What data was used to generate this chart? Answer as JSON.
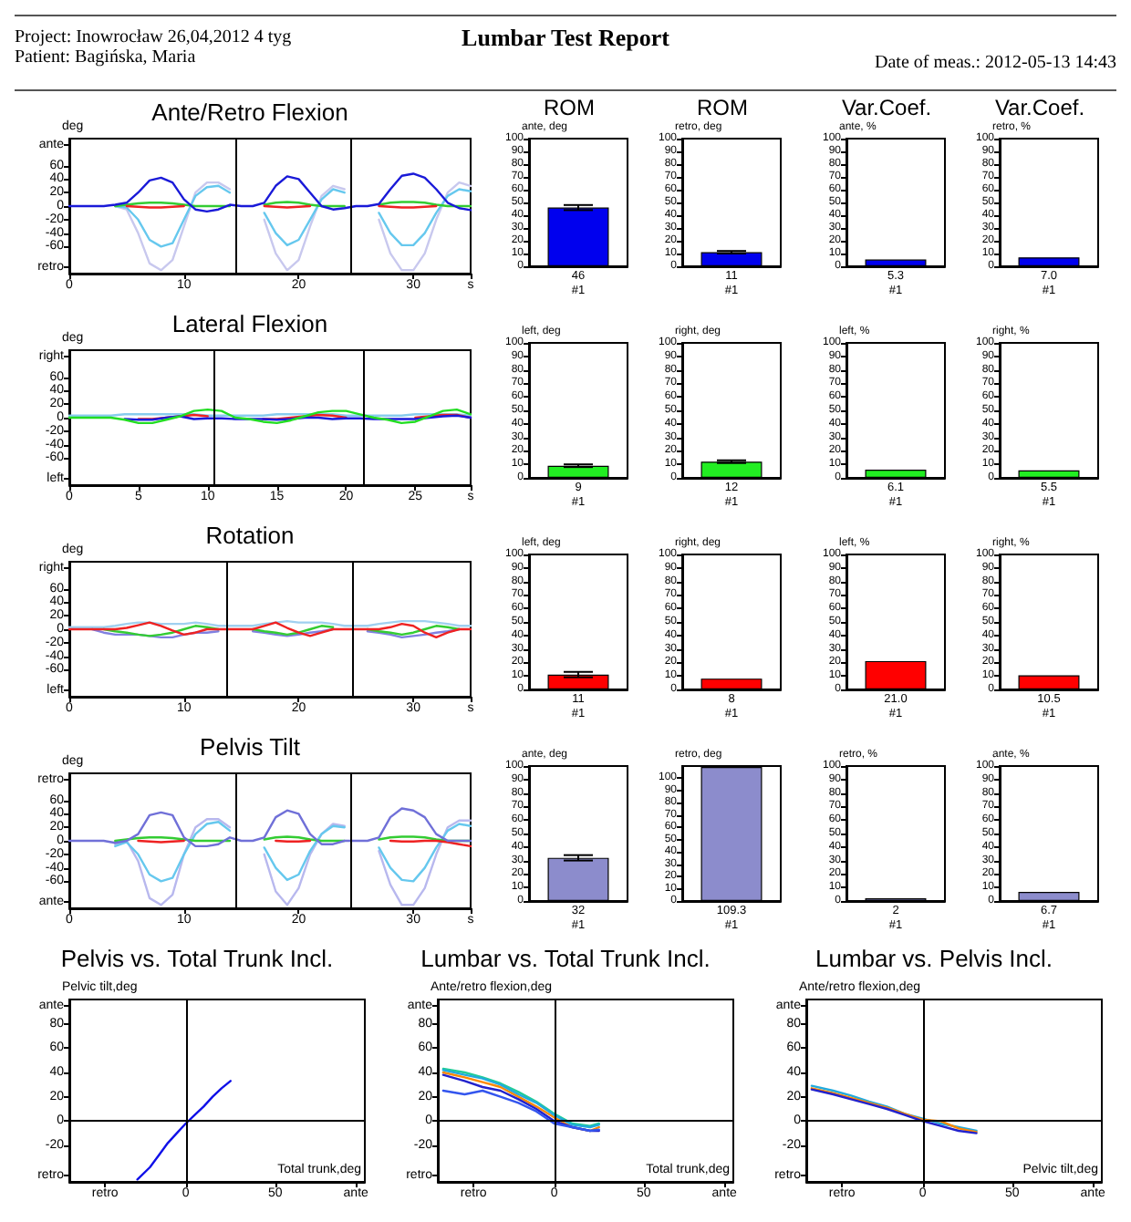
{
  "chart_data": [
    {
      "type": "other",
      "title": "Lumbar Test Report",
      "annotations": [
        "Project: Inowrocław 26,04,2012 4 tyg",
        "Patient: Bagińska, Maria",
        "Date of meas.: 2012-05-13 14:43"
      ]
    },
    {
      "type": "line",
      "title": "Ante/Retro Flexion",
      "ylabel": "deg",
      "xlim": [
        0,
        35
      ],
      "xticks": [
        0,
        10,
        20,
        30,
        {
          "value": 35,
          "label": "s"
        }
      ],
      "ylim": [
        -100,
        100
      ],
      "yticks": [
        {
          "value": 90,
          "label": "ante"
        },
        60,
        40,
        20,
        0,
        -20,
        -40,
        -60,
        {
          "value": -90,
          "label": "retro"
        }
      ],
      "ref_lines": [
        {
          "axis": "x",
          "value": 14.5,
          "color": "#000000"
        },
        {
          "axis": "x",
          "value": 24.5,
          "color": "#000000"
        }
      ],
      "x": [
        0,
        1,
        2,
        3,
        4,
        5,
        6,
        7,
        8,
        9,
        10,
        11,
        12,
        13,
        14,
        15,
        16,
        17,
        18,
        19,
        20,
        21,
        22,
        23,
        24,
        25,
        26,
        27,
        28,
        29,
        30,
        31,
        32,
        33,
        34,
        35
      ],
      "series": [
        {
          "color": "#c8c8ee",
          "values": [
            null,
            null,
            null,
            null,
            0,
            -5,
            -40,
            -85,
            -95,
            -80,
            -30,
            20,
            35,
            35,
            25,
            null,
            null,
            -20,
            -70,
            -95,
            -80,
            -30,
            15,
            30,
            25,
            null,
            null,
            -20,
            -70,
            -95,
            -95,
            -70,
            -20,
            20,
            35,
            30
          ]
        },
        {
          "color": "#66c8ee",
          "values": [
            null,
            null,
            null,
            null,
            0,
            -2,
            -20,
            -50,
            -60,
            -55,
            -20,
            15,
            28,
            30,
            20,
            null,
            null,
            -10,
            -40,
            -58,
            -50,
            -20,
            10,
            25,
            20,
            null,
            null,
            -10,
            -40,
            -58,
            -58,
            -40,
            -10,
            15,
            25,
            22
          ]
        },
        {
          "color": "#33cc33",
          "values": [
            null,
            null,
            null,
            null,
            0,
            2,
            4,
            5,
            5,
            4,
            2,
            0,
            0,
            0,
            0,
            null,
            null,
            2,
            5,
            6,
            5,
            2,
            0,
            0,
            0,
            null,
            null,
            2,
            5,
            6,
            6,
            5,
            2,
            0,
            0,
            0
          ]
        },
        {
          "color": "#ee2222",
          "values": [
            null,
            null,
            null,
            null,
            null,
            0,
            -1,
            -2,
            -2,
            -1,
            0,
            null,
            null,
            null,
            null,
            null,
            null,
            0,
            -1,
            -2,
            -1,
            0,
            null,
            null,
            null,
            null,
            null,
            0,
            -1,
            -2,
            -2,
            -1,
            0,
            null,
            null,
            null
          ]
        },
        {
          "color": "#1a1ad8",
          "values": [
            0,
            0,
            0,
            0,
            2,
            5,
            20,
            38,
            42,
            35,
            10,
            -5,
            -8,
            -5,
            2,
            0,
            0,
            5,
            30,
            44,
            40,
            20,
            0,
            -5,
            -3,
            0,
            0,
            3,
            25,
            45,
            48,
            42,
            25,
            5,
            -3,
            -6
          ]
        }
      ]
    },
    {
      "type": "bar",
      "title": "ROM",
      "ylabel": "ante, deg",
      "categories": [
        "#1"
      ],
      "values": [
        46
      ],
      "errors": [
        2
      ],
      "value_labels": [
        "46"
      ],
      "color": "#0000ee",
      "ylim": [
        0,
        100
      ],
      "yticks": [
        0,
        10,
        20,
        30,
        40,
        50,
        60,
        70,
        80,
        90,
        100
      ]
    },
    {
      "type": "bar",
      "title": "ROM",
      "ylabel": "retro, deg",
      "categories": [
        "#1"
      ],
      "values": [
        11
      ],
      "errors": [
        1
      ],
      "value_labels": [
        "11"
      ],
      "color": "#0000ee",
      "ylim": [
        0,
        100
      ],
      "yticks": [
        0,
        10,
        20,
        30,
        40,
        50,
        60,
        70,
        80,
        90,
        100
      ]
    },
    {
      "type": "bar",
      "title": "Var.Coef.",
      "ylabel": "ante, %",
      "categories": [
        "#1"
      ],
      "values": [
        5.3
      ],
      "value_labels": [
        "5.3"
      ],
      "color": "#0000ee",
      "ylim": [
        0,
        100
      ],
      "yticks": [
        0,
        10,
        20,
        30,
        40,
        50,
        60,
        70,
        80,
        90,
        100
      ]
    },
    {
      "type": "bar",
      "title": "Var.Coef.",
      "ylabel": "retro, %",
      "categories": [
        "#1"
      ],
      "values": [
        7.0
      ],
      "value_labels": [
        "7.0"
      ],
      "color": "#0000ee",
      "ylim": [
        0,
        100
      ],
      "yticks": [
        0,
        10,
        20,
        30,
        40,
        50,
        60,
        70,
        80,
        90,
        100
      ]
    },
    {
      "type": "line",
      "title": "Lateral Flexion",
      "ylabel": "deg",
      "xlim": [
        0,
        29
      ],
      "xticks": [
        0,
        5,
        10,
        15,
        20,
        25,
        {
          "value": 29,
          "label": "s"
        }
      ],
      "ylim": [
        -100,
        100
      ],
      "yticks": [
        {
          "value": 90,
          "label": "right"
        },
        60,
        40,
        20,
        0,
        -20,
        -40,
        -60,
        {
          "value": -90,
          "label": "left"
        }
      ],
      "ref_lines": [
        {
          "axis": "x",
          "value": 10.5,
          "color": "#000000"
        },
        {
          "axis": "x",
          "value": 21.2,
          "color": "#000000"
        }
      ],
      "x": [
        0,
        1,
        2,
        3,
        4,
        5,
        6,
        7,
        8,
        9,
        10,
        11,
        12,
        13,
        14,
        15,
        16,
        17,
        18,
        19,
        20,
        21,
        22,
        23,
        24,
        25,
        26,
        27,
        28,
        29
      ],
      "series": [
        {
          "color": "#88ccee",
          "values": [
            3,
            3,
            3,
            3,
            5,
            5,
            5,
            5,
            5,
            5,
            3,
            3,
            3,
            3,
            3,
            5,
            5,
            5,
            5,
            5,
            3,
            3,
            3,
            3,
            3,
            5,
            5,
            5,
            5,
            3
          ]
        },
        {
          "color": "#ee2222",
          "values": [
            null,
            null,
            null,
            null,
            null,
            -2,
            -2,
            0,
            2,
            4,
            2,
            null,
            null,
            null,
            -2,
            -2,
            0,
            2,
            4,
            3,
            0,
            null,
            null,
            null,
            null,
            0,
            2,
            4,
            4,
            0
          ]
        },
        {
          "color": "#1a1ad8",
          "values": [
            null,
            null,
            null,
            null,
            -2,
            -3,
            -3,
            0,
            2,
            -2,
            -1,
            -1,
            -2,
            -2,
            -2,
            -3,
            -2,
            0,
            0,
            -2,
            -1,
            -1,
            -2,
            -2,
            -2,
            -2,
            0,
            2,
            3,
            0
          ]
        },
        {
          "color": "#22dd22",
          "values": [
            0,
            0,
            0,
            0,
            -3,
            -8,
            -8,
            -3,
            2,
            10,
            12,
            10,
            0,
            -2,
            -6,
            -8,
            -4,
            2,
            8,
            10,
            10,
            5,
            0,
            -3,
            -8,
            -6,
            2,
            10,
            12,
            5
          ]
        }
      ]
    },
    {
      "type": "bar",
      "ylabel": "left, deg",
      "categories": [
        "#1"
      ],
      "values": [
        9
      ],
      "errors": [
        1
      ],
      "value_labels": [
        "9"
      ],
      "color": "#22ee22",
      "ylim": [
        0,
        100
      ],
      "yticks": [
        0,
        10,
        20,
        30,
        40,
        50,
        60,
        70,
        80,
        90,
        100
      ]
    },
    {
      "type": "bar",
      "ylabel": "right, deg",
      "categories": [
        "#1"
      ],
      "values": [
        12
      ],
      "errors": [
        1
      ],
      "value_labels": [
        "12"
      ],
      "color": "#22ee22",
      "ylim": [
        0,
        100
      ],
      "yticks": [
        0,
        10,
        20,
        30,
        40,
        50,
        60,
        70,
        80,
        90,
        100
      ]
    },
    {
      "type": "bar",
      "ylabel": "left, %",
      "categories": [
        "#1"
      ],
      "values": [
        6.1
      ],
      "value_labels": [
        "6.1"
      ],
      "color": "#22ee22",
      "ylim": [
        0,
        100
      ],
      "yticks": [
        0,
        10,
        20,
        30,
        40,
        50,
        60,
        70,
        80,
        90,
        100
      ]
    },
    {
      "type": "bar",
      "ylabel": "right, %",
      "categories": [
        "#1"
      ],
      "values": [
        5.5
      ],
      "value_labels": [
        "5.5"
      ],
      "color": "#22ee22",
      "ylim": [
        0,
        100
      ],
      "yticks": [
        0,
        10,
        20,
        30,
        40,
        50,
        60,
        70,
        80,
        90,
        100
      ]
    },
    {
      "type": "line",
      "title": "Rotation",
      "ylabel": "deg",
      "xlim": [
        0,
        35
      ],
      "xticks": [
        0,
        10,
        20,
        30,
        {
          "value": 35,
          "label": "s"
        }
      ],
      "ylim": [
        -100,
        100
      ],
      "yticks": [
        {
          "value": 90,
          "label": "right"
        },
        60,
        40,
        20,
        0,
        -20,
        -40,
        -60,
        {
          "value": -90,
          "label": "left"
        }
      ],
      "ref_lines": [
        {
          "axis": "x",
          "value": 13.7,
          "color": "#000000"
        },
        {
          "axis": "x",
          "value": 24.7,
          "color": "#000000"
        }
      ],
      "x": [
        0,
        1,
        2,
        3,
        4,
        5,
        6,
        7,
        8,
        9,
        10,
        11,
        12,
        13,
        14,
        15,
        16,
        17,
        18,
        19,
        20,
        21,
        22,
        23,
        24,
        25,
        26,
        27,
        28,
        29,
        30,
        31,
        32,
        33,
        34,
        35
      ],
      "series": [
        {
          "color": "#a0d0f0",
          "values": [
            3,
            3,
            3,
            3,
            5,
            8,
            10,
            10,
            8,
            8,
            8,
            10,
            8,
            5,
            5,
            5,
            5,
            8,
            10,
            12,
            10,
            10,
            10,
            8,
            5,
            5,
            5,
            8,
            10,
            12,
            12,
            12,
            10,
            8,
            5,
            5
          ]
        },
        {
          "color": "#8080e0",
          "values": [
            null,
            null,
            0,
            -5,
            -8,
            -8,
            -8,
            -10,
            -12,
            -12,
            -8,
            -5,
            -5,
            -3,
            null,
            null,
            -3,
            -5,
            -8,
            -10,
            -8,
            -5,
            -3,
            0,
            null,
            null,
            -3,
            -5,
            -8,
            -12,
            -10,
            -8,
            -5,
            -3,
            0,
            null
          ]
        },
        {
          "color": "#33cc33",
          "values": [
            null,
            null,
            null,
            0,
            -3,
            -5,
            -8,
            -10,
            -8,
            -5,
            0,
            5,
            3,
            0,
            null,
            null,
            0,
            -3,
            -5,
            -8,
            -5,
            0,
            5,
            3,
            null,
            null,
            0,
            -3,
            -5,
            -8,
            -5,
            0,
            5,
            3,
            0,
            null
          ]
        },
        {
          "color": "#ee2222",
          "values": [
            0,
            0,
            0,
            0,
            0,
            2,
            6,
            10,
            5,
            -2,
            -8,
            -5,
            0,
            0,
            0,
            0,
            0,
            5,
            10,
            2,
            -5,
            -10,
            -5,
            0,
            0,
            0,
            0,
            0,
            3,
            8,
            5,
            -5,
            -12,
            -5,
            0,
            0
          ]
        }
      ]
    },
    {
      "type": "bar",
      "ylabel": "left, deg",
      "categories": [
        "#1"
      ],
      "values": [
        11
      ],
      "errors": [
        2
      ],
      "value_labels": [
        "11"
      ],
      "color": "#ff0000",
      "ylim": [
        0,
        100
      ],
      "yticks": [
        0,
        10,
        20,
        30,
        40,
        50,
        60,
        70,
        80,
        90,
        100
      ]
    },
    {
      "type": "bar",
      "ylabel": "right, deg",
      "categories": [
        "#1"
      ],
      "values": [
        8
      ],
      "value_labels": [
        "8"
      ],
      "color": "#ff0000",
      "ylim": [
        0,
        100
      ],
      "yticks": [
        0,
        10,
        20,
        30,
        40,
        50,
        60,
        70,
        80,
        90,
        100
      ]
    },
    {
      "type": "bar",
      "ylabel": "left, %",
      "categories": [
        "#1"
      ],
      "values": [
        21.0
      ],
      "value_labels": [
        "21.0"
      ],
      "color": "#ff0000",
      "ylim": [
        0,
        100
      ],
      "yticks": [
        0,
        10,
        20,
        30,
        40,
        50,
        60,
        70,
        80,
        90,
        100
      ]
    },
    {
      "type": "bar",
      "ylabel": "right, %",
      "categories": [
        "#1"
      ],
      "values": [
        10.5
      ],
      "value_labels": [
        "10.5"
      ],
      "color": "#ff0000",
      "ylim": [
        0,
        100
      ],
      "yticks": [
        0,
        10,
        20,
        30,
        40,
        50,
        60,
        70,
        80,
        90,
        100
      ]
    },
    {
      "type": "line",
      "title": "Pelvis Tilt",
      "ylabel": "deg",
      "xlim": [
        0,
        35
      ],
      "xticks": [
        0,
        10,
        20,
        30,
        {
          "value": 35,
          "label": "s"
        }
      ],
      "ylim": [
        -100,
        100
      ],
      "yticks": [
        {
          "value": 90,
          "label": "retro"
        },
        60,
        40,
        20,
        0,
        -20,
        -40,
        -60,
        {
          "value": -90,
          "label": "ante"
        }
      ],
      "ref_lines": [
        {
          "axis": "x",
          "value": 14.5,
          "color": "#000000"
        },
        {
          "axis": "x",
          "value": 24.5,
          "color": "#000000"
        }
      ],
      "x": [
        0,
        1,
        2,
        3,
        4,
        5,
        6,
        7,
        8,
        9,
        10,
        11,
        12,
        13,
        14,
        15,
        16,
        17,
        18,
        19,
        20,
        21,
        22,
        23,
        24,
        25,
        26,
        27,
        28,
        29,
        30,
        31,
        32,
        33,
        34,
        35
      ],
      "series": [
        {
          "color": "#b8b8ee",
          "values": [
            null,
            null,
            null,
            null,
            -5,
            0,
            -30,
            -85,
            -95,
            -80,
            -20,
            20,
            32,
            32,
            20,
            null,
            null,
            -20,
            -75,
            -95,
            -70,
            -20,
            10,
            25,
            22,
            null,
            null,
            -15,
            -65,
            -95,
            -95,
            -70,
            -20,
            20,
            30,
            30
          ]
        },
        {
          "color": "#66c8ee",
          "values": [
            null,
            null,
            null,
            null,
            -8,
            -2,
            -20,
            -50,
            -60,
            -55,
            -20,
            10,
            25,
            28,
            15,
            null,
            null,
            -10,
            -40,
            -58,
            -50,
            -15,
            10,
            22,
            20,
            null,
            null,
            -10,
            -40,
            -58,
            -60,
            -40,
            -10,
            15,
            25,
            22
          ]
        },
        {
          "color": "#33cc33",
          "values": [
            null,
            null,
            null,
            null,
            0,
            2,
            4,
            5,
            5,
            4,
            2,
            0,
            0,
            0,
            0,
            null,
            null,
            2,
            5,
            6,
            5,
            2,
            0,
            0,
            0,
            null,
            null,
            2,
            5,
            6,
            6,
            5,
            2,
            0,
            0,
            0
          ]
        },
        {
          "color": "#ee2222",
          "values": [
            null,
            null,
            null,
            null,
            null,
            null,
            0,
            -1,
            -2,
            -1,
            0,
            null,
            null,
            null,
            null,
            null,
            null,
            null,
            0,
            -1,
            -1,
            0,
            null,
            null,
            null,
            null,
            null,
            null,
            0,
            -1,
            -1,
            0,
            0,
            -2,
            -5,
            -8
          ]
        },
        {
          "color": "#7070d8",
          "values": [
            0,
            0,
            0,
            0,
            -3,
            0,
            10,
            38,
            42,
            38,
            5,
            -8,
            -8,
            -5,
            5,
            0,
            0,
            5,
            35,
            45,
            40,
            10,
            -5,
            -5,
            0,
            0,
            0,
            5,
            35,
            48,
            45,
            35,
            10,
            0,
            0,
            0
          ]
        }
      ]
    },
    {
      "type": "bar",
      "ylabel": "ante, deg",
      "categories": [
        "#1"
      ],
      "values": [
        32
      ],
      "errors": [
        2
      ],
      "value_labels": [
        "32"
      ],
      "color": "#8c8ccc",
      "ylim": [
        0,
        100
      ],
      "yticks": [
        0,
        10,
        20,
        30,
        40,
        50,
        60,
        70,
        80,
        90,
        100
      ]
    },
    {
      "type": "bar",
      "ylabel": "retro, deg",
      "categories": [
        "#1"
      ],
      "values": [
        109.3
      ],
      "value_labels": [
        "109.3"
      ],
      "color": "#8c8ccc",
      "ylim": [
        0,
        110
      ],
      "yticks": [
        0,
        10,
        20,
        30,
        40,
        50,
        60,
        70,
        80,
        90,
        100
      ]
    },
    {
      "type": "bar",
      "ylabel": "retro, %",
      "categories": [
        "#1"
      ],
      "values": [
        2
      ],
      "value_labels": [
        "2"
      ],
      "color": "#8c8ccc",
      "ylim": [
        0,
        100
      ],
      "yticks": [
        0,
        10,
        20,
        30,
        40,
        50,
        60,
        70,
        80,
        90,
        100
      ]
    },
    {
      "type": "bar",
      "ylabel": "ante, %",
      "categories": [
        "#1"
      ],
      "values": [
        6.7
      ],
      "value_labels": [
        "6.7"
      ],
      "color": "#8c8ccc",
      "ylim": [
        0,
        100
      ],
      "yticks": [
        0,
        10,
        20,
        30,
        40,
        50,
        60,
        70,
        80,
        90,
        100
      ]
    },
    {
      "type": "line",
      "title": "Pelvis vs. Total Trunk Incl.",
      "ylabel": "Pelvic tilt,deg",
      "xlabel": "Total trunk,deg",
      "xlim": [
        -65,
        100
      ],
      "xticks": [
        {
          "value": -45,
          "label": "retro"
        },
        0,
        50,
        {
          "value": 95,
          "label": "ante"
        }
      ],
      "ylim": [
        -50,
        100
      ],
      "yticks": [
        {
          "value": 95,
          "label": "ante"
        },
        80,
        60,
        40,
        20,
        0,
        -20,
        {
          "value": -45,
          "label": "retro"
        }
      ],
      "ref_lines": [
        {
          "axis": "x",
          "value": 0,
          "color": "#000000"
        },
        {
          "axis": "y",
          "value": 0,
          "color": "#000000"
        }
      ],
      "series": [
        {
          "color": "#1010e8",
          "x": [
            -27,
            -20,
            -15,
            -10,
            -5,
            0,
            5,
            10,
            15,
            20,
            25
          ],
          "values": [
            -48,
            -38,
            -28,
            -18,
            -10,
            -2,
            5,
            12,
            20,
            27,
            33
          ]
        }
      ]
    },
    {
      "type": "line",
      "title": "Lumbar vs. Total Trunk Incl.",
      "ylabel": "Ante/retro flexion,deg",
      "xlabel": "Total trunk,deg",
      "xlim": [
        -65,
        100
      ],
      "xticks": [
        {
          "value": -45,
          "label": "retro"
        },
        0,
        50,
        {
          "value": 95,
          "label": "ante"
        }
      ],
      "ylim": [
        -50,
        100
      ],
      "yticks": [
        {
          "value": 95,
          "label": "ante"
        },
        80,
        60,
        40,
        20,
        0,
        -20,
        {
          "value": -45,
          "label": "retro"
        }
      ],
      "ref_lines": [
        {
          "axis": "x",
          "value": 0,
          "color": "#000000"
        },
        {
          "axis": "y",
          "value": 0,
          "color": "#000000"
        }
      ],
      "series": [
        {
          "color": "#22cc99",
          "x": [
            -62,
            -50,
            -40,
            -30,
            -20,
            -10,
            0,
            10,
            20,
            25
          ],
          "values": [
            43,
            40,
            36,
            31,
            24,
            16,
            6,
            -2,
            -4,
            -2
          ]
        },
        {
          "color": "#ff8800",
          "x": [
            -62,
            -50,
            -40,
            -30,
            -20,
            -10,
            0,
            10,
            20,
            25
          ],
          "values": [
            40,
            36,
            32,
            28,
            20,
            12,
            3,
            -5,
            -8,
            -5
          ]
        },
        {
          "color": "#22aadd",
          "x": [
            -62,
            -50,
            -40,
            -30,
            -20,
            -10,
            0,
            10,
            20,
            25
          ],
          "values": [
            42,
            38,
            35,
            30,
            22,
            15,
            5,
            -3,
            -5,
            -3
          ]
        },
        {
          "color": "#2222cc",
          "x": [
            -62,
            -50,
            -40,
            -30,
            -20,
            -10,
            0,
            10,
            20,
            25
          ],
          "values": [
            38,
            33,
            28,
            25,
            18,
            10,
            0,
            -5,
            -8,
            -8
          ]
        },
        {
          "color": "#3355ee",
          "x": [
            -62,
            -50,
            -40,
            -30,
            -20,
            -10,
            0,
            10,
            20,
            25
          ],
          "values": [
            25,
            22,
            25,
            20,
            15,
            8,
            -2,
            -5,
            -8,
            -7
          ]
        }
      ]
    },
    {
      "type": "line",
      "title": "Lumbar vs. Pelvis Incl.",
      "ylabel": "Ante/retro flexion,deg",
      "xlabel": "Pelvic tilt,deg",
      "xlim": [
        -65,
        100
      ],
      "xticks": [
        {
          "value": -45,
          "label": "retro"
        },
        0,
        50,
        {
          "value": 95,
          "label": "ante"
        }
      ],
      "ylim": [
        -50,
        100
      ],
      "yticks": [
        {
          "value": 95,
          "label": "ante"
        },
        80,
        60,
        40,
        20,
        0,
        -20,
        {
          "value": -45,
          "label": "retro"
        }
      ],
      "ref_lines": [
        {
          "axis": "x",
          "value": 0,
          "color": "#000000"
        },
        {
          "axis": "y",
          "value": 0,
          "color": "#000000"
        }
      ],
      "series": [
        {
          "color": "#22aadd",
          "x": [
            -62,
            -50,
            -40,
            -30,
            -20,
            -10,
            0,
            10,
            20,
            30
          ],
          "values": [
            29,
            25,
            21,
            16,
            12,
            6,
            2,
            -2,
            -5,
            -8
          ]
        },
        {
          "color": "#ff8800",
          "x": [
            -62,
            -50,
            -40,
            -30,
            -20,
            -10,
            0,
            10,
            20,
            30
          ],
          "values": [
            27,
            23,
            19,
            15,
            11,
            6,
            1,
            0,
            -6,
            -9
          ]
        },
        {
          "color": "#2222cc",
          "x": [
            -62,
            -50,
            -40,
            -30,
            -20,
            -10,
            0,
            10,
            20,
            30
          ],
          "values": [
            26,
            22,
            18,
            14,
            10,
            5,
            0,
            -4,
            -8,
            -10
          ]
        }
      ]
    }
  ]
}
